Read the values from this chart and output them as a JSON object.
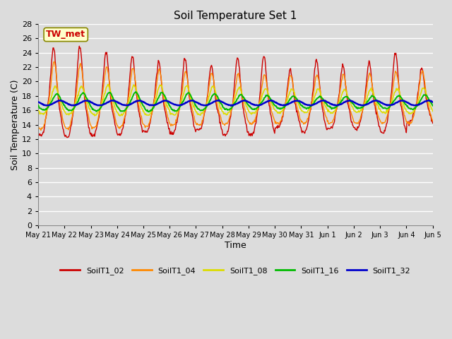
{
  "title": "Soil Temperature Set 1",
  "xlabel": "Time",
  "ylabel": "Soil Temperature (C)",
  "ylim": [
    0,
    28
  ],
  "yticks": [
    0,
    2,
    4,
    6,
    8,
    10,
    12,
    14,
    16,
    18,
    20,
    22,
    24,
    26,
    28
  ],
  "background_color": "#dcdcdc",
  "plot_bg_color": "#dcdcdc",
  "grid_color": "#ffffff",
  "colors": {
    "SoilT1_02": "#cc0000",
    "SoilT1_04": "#ff8800",
    "SoilT1_08": "#dddd00",
    "SoilT1_16": "#00bb00",
    "SoilT1_32": "#0000cc"
  },
  "annotation_text": "TW_met",
  "annotation_color": "#cc0000",
  "annotation_bg": "#ffffcc",
  "annotation_border": "#888800",
  "day_labels": [
    "May 21",
    "May 22",
    "May 23",
    "May 24",
    "May 25",
    "May 26",
    "May 27",
    "May 28",
    "May 29",
    "May 30",
    "May 31",
    "Jun 1",
    "Jun 2",
    "Jun 3",
    "Jun 4",
    "Jun 5"
  ],
  "legend_labels": [
    "SoilT1_02",
    "SoilT1_04",
    "SoilT1_08",
    "SoilT1_16",
    "SoilT1_32"
  ]
}
